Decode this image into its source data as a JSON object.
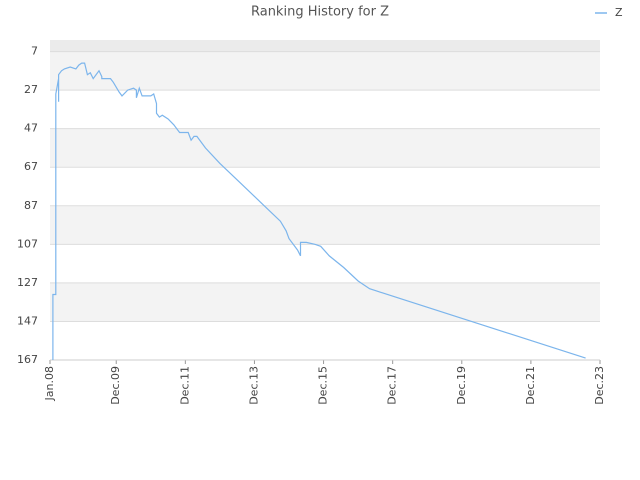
{
  "chart_data": {
    "type": "line",
    "title": "Ranking History for Z",
    "x": [
      "2008-02",
      "2008-02",
      "2008-03",
      "2008-03",
      "2008-03",
      "2008-04",
      "2008-04",
      "2008-04",
      "2008-04",
      "2008-05",
      "2008-06",
      "2008-08",
      "2008-10",
      "2008-11",
      "2008-12",
      "2009-01",
      "2009-02",
      "2009-03",
      "2009-04",
      "2009-06",
      "2009-07",
      "2009-07",
      "2009-10",
      "2009-11",
      "2010-01",
      "2010-02",
      "2010-04",
      "2010-06",
      "2010-07",
      "2010-07",
      "2010-08",
      "2010-09",
      "2010-12",
      "2011-01",
      "2011-02",
      "2011-02",
      "2011-03",
      "2011-04",
      "2011-06",
      "2011-08",
      "2011-10",
      "2012-01",
      "2012-02",
      "2012-03",
      "2012-04",
      "2012-07",
      "2012-12",
      "2013-07",
      "2014-02",
      "2014-09",
      "2014-11",
      "2014-12",
      "2015-03",
      "2015-04",
      "2015-04",
      "2015-06",
      "2015-09",
      "2015-11",
      "2016-02",
      "2016-07",
      "2016-12",
      "2017-04",
      "2017-06",
      "2023-07"
    ],
    "series": [
      {
        "name": "Z",
        "color": "#7cb5ec",
        "values": [
          167,
          133,
          133,
          67,
          29,
          21,
          33,
          21,
          19,
          17,
          16,
          15,
          16,
          14,
          13,
          13,
          19,
          18,
          21,
          17,
          20,
          21,
          21,
          23,
          28,
          30,
          27,
          26,
          27,
          31,
          26,
          30,
          30,
          29,
          34,
          39,
          41,
          40,
          42,
          45,
          49,
          49,
          53,
          51,
          51,
          57,
          65,
          75,
          85,
          95,
          100,
          104,
          110,
          113,
          106,
          106,
          107,
          108,
          113,
          119,
          126,
          130,
          131,
          166
        ]
      }
    ],
    "xlim": [
      "2008-01",
      "2023-12"
    ],
    "xticks": [
      {
        "value": "2008-01",
        "label": "Jan.08"
      },
      {
        "value": "2009-12",
        "label": "Dec.09"
      },
      {
        "value": "2011-12",
        "label": "Dec.11"
      },
      {
        "value": "2013-12",
        "label": "Dec.13"
      },
      {
        "value": "2015-12",
        "label": "Dec.15"
      },
      {
        "value": "2017-12",
        "label": "Dec.17"
      },
      {
        "value": "2019-12",
        "label": "Dec.19"
      },
      {
        "value": "2021-12",
        "label": "Dec.21"
      },
      {
        "value": "2023-12",
        "label": "Dec.23"
      }
    ],
    "ylim": [
      167,
      1
    ],
    "yticks": [
      7,
      27,
      47,
      67,
      87,
      107,
      127,
      147,
      167
    ],
    "grid": true
  }
}
